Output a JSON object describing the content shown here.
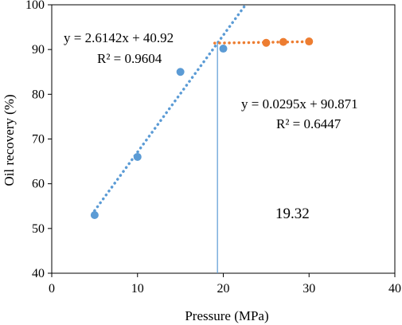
{
  "chart_data": {
    "type": "scatter",
    "xlabel": "Pressure  (MPa)",
    "ylabel": "Oil recovery  (%)",
    "xlim": [
      0,
      40
    ],
    "ylim": [
      40,
      100
    ],
    "x_ticks": [
      "0",
      "10",
      "20",
      "30",
      "40"
    ],
    "y_ticks": [
      "40",
      "50",
      "60",
      "70",
      "80",
      "90",
      "100"
    ],
    "grid": false,
    "colors": {
      "series1": "#5b9bd5",
      "series2": "#ed7d31",
      "marker_line": "#5b9bd5"
    },
    "series": [
      {
        "points": [
          {
            "x": 5,
            "y": 53
          },
          {
            "x": 10,
            "y": 66
          },
          {
            "x": 15,
            "y": 85
          },
          {
            "x": 20,
            "y": 90.2
          }
        ],
        "trendline": {
          "slope": 2.6142,
          "intercept": 40.92,
          "x_from": 5,
          "x_to": 22.6
        },
        "equation": "y = 2.6142x + 40.92",
        "r2": "R² = 0.9604"
      },
      {
        "points": [
          {
            "x": 25,
            "y": 91.5
          },
          {
            "x": 27,
            "y": 91.7
          },
          {
            "x": 30,
            "y": 91.8
          }
        ],
        "trendline": {
          "slope": 0.0295,
          "intercept": 90.871,
          "x_from": 19,
          "x_to": 30
        },
        "equation": "y = 0.0295x + 90.871",
        "r2": "R² = 0.6447"
      }
    ],
    "intersection": {
      "x": 19.32,
      "label": "19.32"
    }
  }
}
